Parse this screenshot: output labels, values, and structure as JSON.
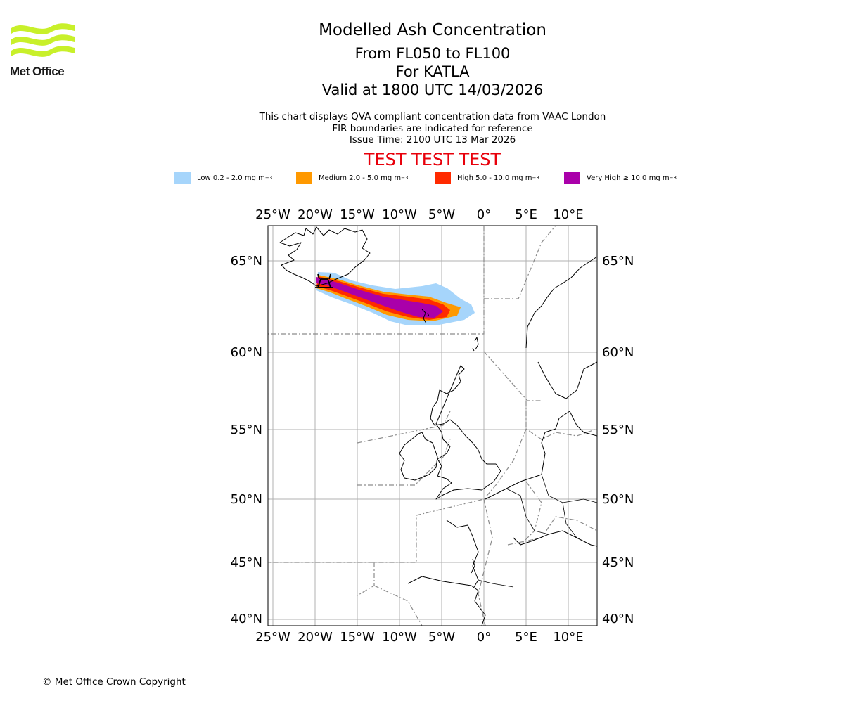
{
  "header": {
    "logo_text": "Met Office",
    "title": "Modelled Ash Concentration",
    "subtitle_lines": [
      "From FL050 to FL100",
      "For KATLA",
      "Valid at 1800 UTC 14/03/2026"
    ],
    "info_lines": [
      "This chart displays QVA compliant concentration data from VAAC London",
      "FIR boundaries are indicated for reference",
      "Issue Time: 2100 UTC 13 Mar 2026"
    ],
    "test_banner": "TEST TEST TEST",
    "test_color": "#e8000b"
  },
  "legend": [
    {
      "label": "Low 0.2 - 2.0 mg m",
      "unit_exp": "−3",
      "color": "#a6d5fb"
    },
    {
      "label": "Medium 2.0 - 5.0 mg m",
      "unit_exp": "−3",
      "color": "#ff9900"
    },
    {
      "label": "High 5.0 - 10.0 mg m",
      "unit_exp": "−3",
      "color": "#ff2a00"
    },
    {
      "label": "Very High  ≥  10.0 mg m",
      "unit_exp": "−3",
      "color": "#aa00aa"
    }
  ],
  "map": {
    "lon_range": [
      -25,
      13
    ],
    "lat_range": [
      39.5,
      67
    ],
    "lon_ticks": [
      "25°W",
      "20°W",
      "15°W",
      "10°W",
      "5°W",
      "0°",
      "5°E",
      "10°E"
    ],
    "lat_ticks": [
      "65°N",
      "60°N",
      "55°N",
      "50°N",
      "45°N",
      "40°N"
    ],
    "grid": true,
    "volcano": "KATLA",
    "volcano_lonlat": [
      -19.05,
      63.63
    ]
  },
  "footer": {
    "copyright": "© Met Office Crown Copyright"
  }
}
